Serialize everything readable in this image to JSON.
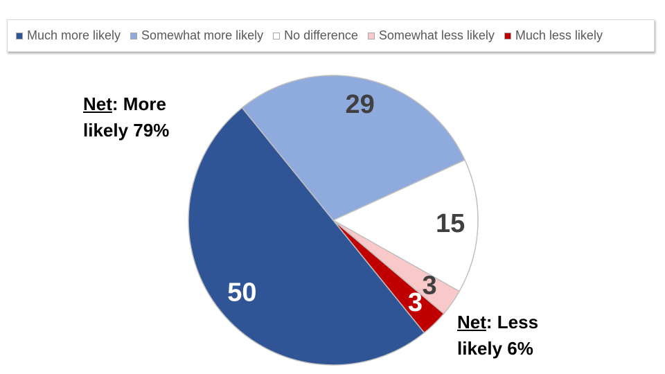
{
  "chart_data": {
    "type": "pie",
    "categories": [
      "Much more likely",
      "Somewhat more likely",
      "No difference",
      "Somewhat less likely",
      "Much less likely"
    ],
    "values": [
      50,
      29,
      15,
      3,
      3
    ],
    "colors": [
      "#2F5597",
      "#8FAADC",
      "#FFFFFF",
      "#F9C9C9",
      "#C00000"
    ],
    "label_colors": [
      "#FFFFFF",
      "#404040",
      "#404040",
      "#404040",
      "#FFFFFF"
    ],
    "legend": "top",
    "annotations": [
      {
        "underlined": "Net",
        "text": ": More likely 79%"
      },
      {
        "underlined": "Net",
        "text": ": Less likely 6%"
      }
    ]
  }
}
